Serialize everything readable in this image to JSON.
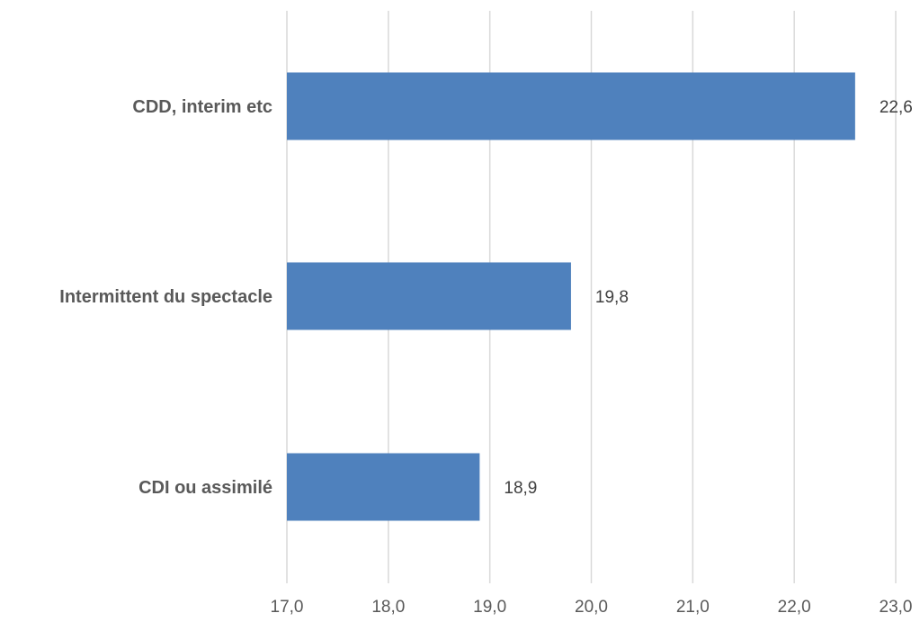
{
  "chart_data": {
    "type": "bar",
    "orientation": "horizontal",
    "categories": [
      "CDD, interim etc",
      "Intermittent du spectacle",
      "CDI ou assimilé"
    ],
    "values": [
      22.6,
      19.8,
      18.9
    ],
    "value_labels": [
      "22,6",
      "19,8",
      "18,9"
    ],
    "xlim": [
      17.0,
      23.0
    ],
    "ticks": [
      17.0,
      18.0,
      19.0,
      20.0,
      21.0,
      22.0,
      23.0
    ],
    "tick_labels": [
      "17,0",
      "18,0",
      "19,0",
      "20,0",
      "21,0",
      "22,0",
      "23,0"
    ],
    "grid": true,
    "bar_color": "#4f81bd"
  }
}
